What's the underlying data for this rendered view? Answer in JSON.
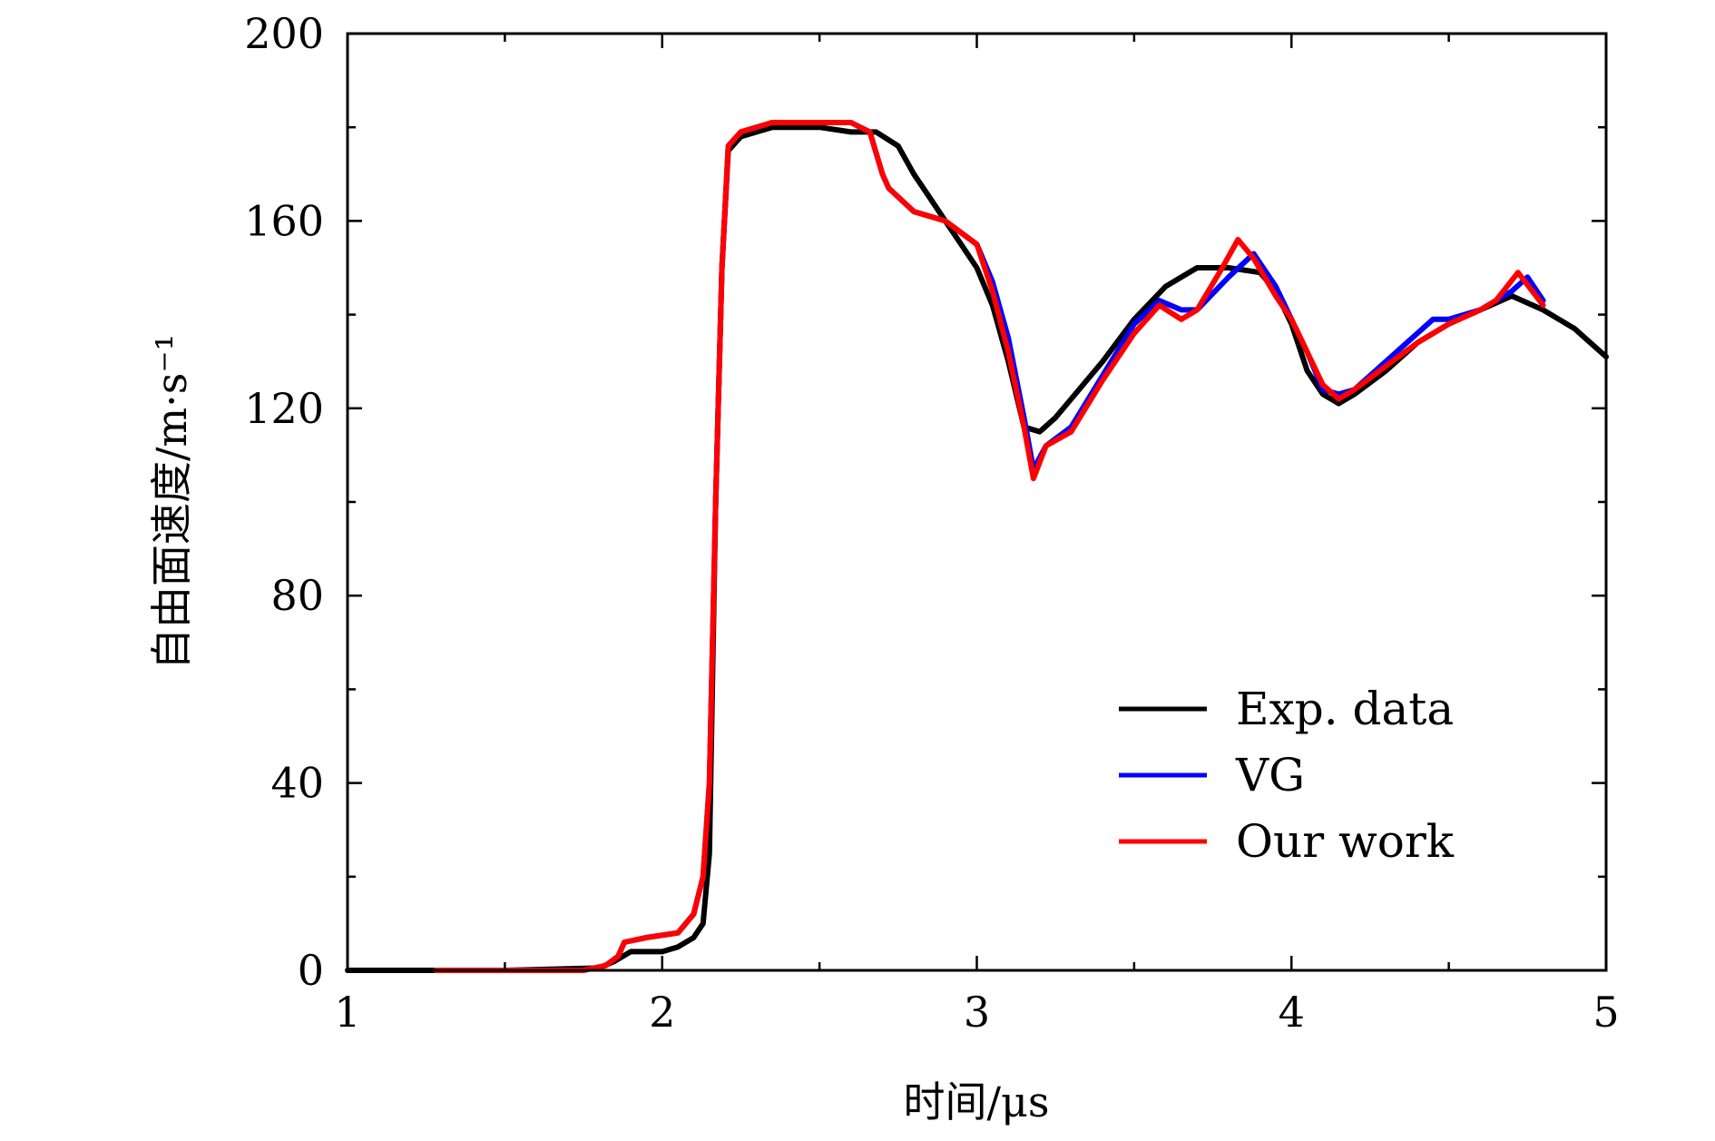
{
  "chart_data": {
    "type": "line",
    "title": "",
    "xlabel": "时间/μs",
    "ylabel": "自由面速度/m·s⁻¹",
    "xlim": [
      1,
      5
    ],
    "ylim": [
      0,
      200
    ],
    "xticks": [
      1,
      2,
      3,
      4,
      5
    ],
    "xticks_minor": [
      1.5,
      2.5,
      3.5,
      4.5
    ],
    "yticks": [
      0,
      40,
      80,
      120,
      160,
      200
    ],
    "yticks_minor": [
      20,
      60,
      100,
      140,
      180
    ],
    "grid": false,
    "legend_position": "lower-right",
    "series": [
      {
        "name": "Exp. data",
        "color": "#000000",
        "points": [
          [
            1.0,
            0
          ],
          [
            1.5,
            0
          ],
          [
            1.8,
            0.5
          ],
          [
            1.85,
            2
          ],
          [
            1.9,
            4
          ],
          [
            1.95,
            4
          ],
          [
            2.0,
            4
          ],
          [
            2.05,
            5
          ],
          [
            2.1,
            7
          ],
          [
            2.13,
            10
          ],
          [
            2.15,
            25
          ],
          [
            2.17,
            100
          ],
          [
            2.19,
            150
          ],
          [
            2.21,
            175
          ],
          [
            2.25,
            178
          ],
          [
            2.35,
            180
          ],
          [
            2.5,
            180
          ],
          [
            2.6,
            179
          ],
          [
            2.68,
            179
          ],
          [
            2.75,
            176
          ],
          [
            2.8,
            170
          ],
          [
            2.85,
            165
          ],
          [
            2.9,
            160
          ],
          [
            2.95,
            155
          ],
          [
            3.0,
            150
          ],
          [
            3.05,
            142
          ],
          [
            3.1,
            130
          ],
          [
            3.15,
            116
          ],
          [
            3.2,
            115
          ],
          [
            3.25,
            118
          ],
          [
            3.3,
            122
          ],
          [
            3.4,
            130
          ],
          [
            3.5,
            139
          ],
          [
            3.6,
            146
          ],
          [
            3.7,
            150
          ],
          [
            3.8,
            150
          ],
          [
            3.9,
            149
          ],
          [
            3.95,
            145
          ],
          [
            4.0,
            138
          ],
          [
            4.05,
            128
          ],
          [
            4.1,
            123
          ],
          [
            4.15,
            121
          ],
          [
            4.2,
            123
          ],
          [
            4.3,
            128
          ],
          [
            4.4,
            134
          ],
          [
            4.5,
            138
          ],
          [
            4.6,
            141
          ],
          [
            4.7,
            144
          ],
          [
            4.8,
            141
          ],
          [
            4.9,
            137
          ],
          [
            5.0,
            131
          ]
        ]
      },
      {
        "name": "VG",
        "color": "#0000ff",
        "points": [
          [
            1.28,
            0
          ],
          [
            1.75,
            0
          ],
          [
            1.82,
            1
          ],
          [
            1.86,
            3
          ],
          [
            1.88,
            6
          ],
          [
            1.95,
            7
          ],
          [
            2.05,
            8
          ],
          [
            2.1,
            12
          ],
          [
            2.13,
            20
          ],
          [
            2.15,
            40
          ],
          [
            2.17,
            100
          ],
          [
            2.19,
            150
          ],
          [
            2.21,
            176
          ],
          [
            2.25,
            179
          ],
          [
            2.35,
            181
          ],
          [
            2.5,
            181
          ],
          [
            2.6,
            181
          ],
          [
            2.66,
            179
          ],
          [
            2.7,
            170
          ],
          [
            2.72,
            167
          ],
          [
            2.8,
            162
          ],
          [
            2.9,
            160
          ],
          [
            3.0,
            155
          ],
          [
            3.05,
            147
          ],
          [
            3.1,
            135
          ],
          [
            3.15,
            118
          ],
          [
            3.18,
            107
          ],
          [
            3.22,
            112
          ],
          [
            3.3,
            116
          ],
          [
            3.4,
            127
          ],
          [
            3.5,
            138
          ],
          [
            3.58,
            143
          ],
          [
            3.65,
            141
          ],
          [
            3.7,
            141
          ],
          [
            3.8,
            148
          ],
          [
            3.88,
            153
          ],
          [
            3.95,
            146
          ],
          [
            4.0,
            139
          ],
          [
            4.05,
            132
          ],
          [
            4.1,
            124
          ],
          [
            4.15,
            123
          ],
          [
            4.2,
            124
          ],
          [
            4.3,
            130
          ],
          [
            4.4,
            136
          ],
          [
            4.45,
            139
          ],
          [
            4.5,
            139
          ],
          [
            4.6,
            141
          ],
          [
            4.7,
            145
          ],
          [
            4.75,
            148
          ],
          [
            4.8,
            143
          ]
        ]
      },
      {
        "name": "Our work",
        "color": "#ff0000",
        "points": [
          [
            1.28,
            0
          ],
          [
            1.75,
            0
          ],
          [
            1.82,
            1
          ],
          [
            1.86,
            3
          ],
          [
            1.88,
            6
          ],
          [
            1.95,
            7
          ],
          [
            2.05,
            8
          ],
          [
            2.1,
            12
          ],
          [
            2.13,
            20
          ],
          [
            2.15,
            40
          ],
          [
            2.17,
            100
          ],
          [
            2.19,
            150
          ],
          [
            2.21,
            176
          ],
          [
            2.25,
            179
          ],
          [
            2.35,
            181
          ],
          [
            2.5,
            181
          ],
          [
            2.6,
            181
          ],
          [
            2.66,
            179
          ],
          [
            2.7,
            170
          ],
          [
            2.72,
            167
          ],
          [
            2.8,
            162
          ],
          [
            2.9,
            160
          ],
          [
            3.0,
            155
          ],
          [
            3.05,
            145
          ],
          [
            3.1,
            132
          ],
          [
            3.15,
            116
          ],
          [
            3.18,
            105
          ],
          [
            3.22,
            112
          ],
          [
            3.3,
            115
          ],
          [
            3.4,
            126
          ],
          [
            3.5,
            136
          ],
          [
            3.58,
            142
          ],
          [
            3.65,
            139
          ],
          [
            3.7,
            141
          ],
          [
            3.78,
            150
          ],
          [
            3.83,
            156
          ],
          [
            3.88,
            152
          ],
          [
            3.95,
            144
          ],
          [
            4.0,
            139
          ],
          [
            4.05,
            132
          ],
          [
            4.1,
            125
          ],
          [
            4.15,
            122
          ],
          [
            4.2,
            124
          ],
          [
            4.3,
            129
          ],
          [
            4.4,
            134
          ],
          [
            4.5,
            138
          ],
          [
            4.6,
            141
          ],
          [
            4.65,
            143
          ],
          [
            4.72,
            149
          ],
          [
            4.8,
            142
          ]
        ]
      }
    ]
  }
}
